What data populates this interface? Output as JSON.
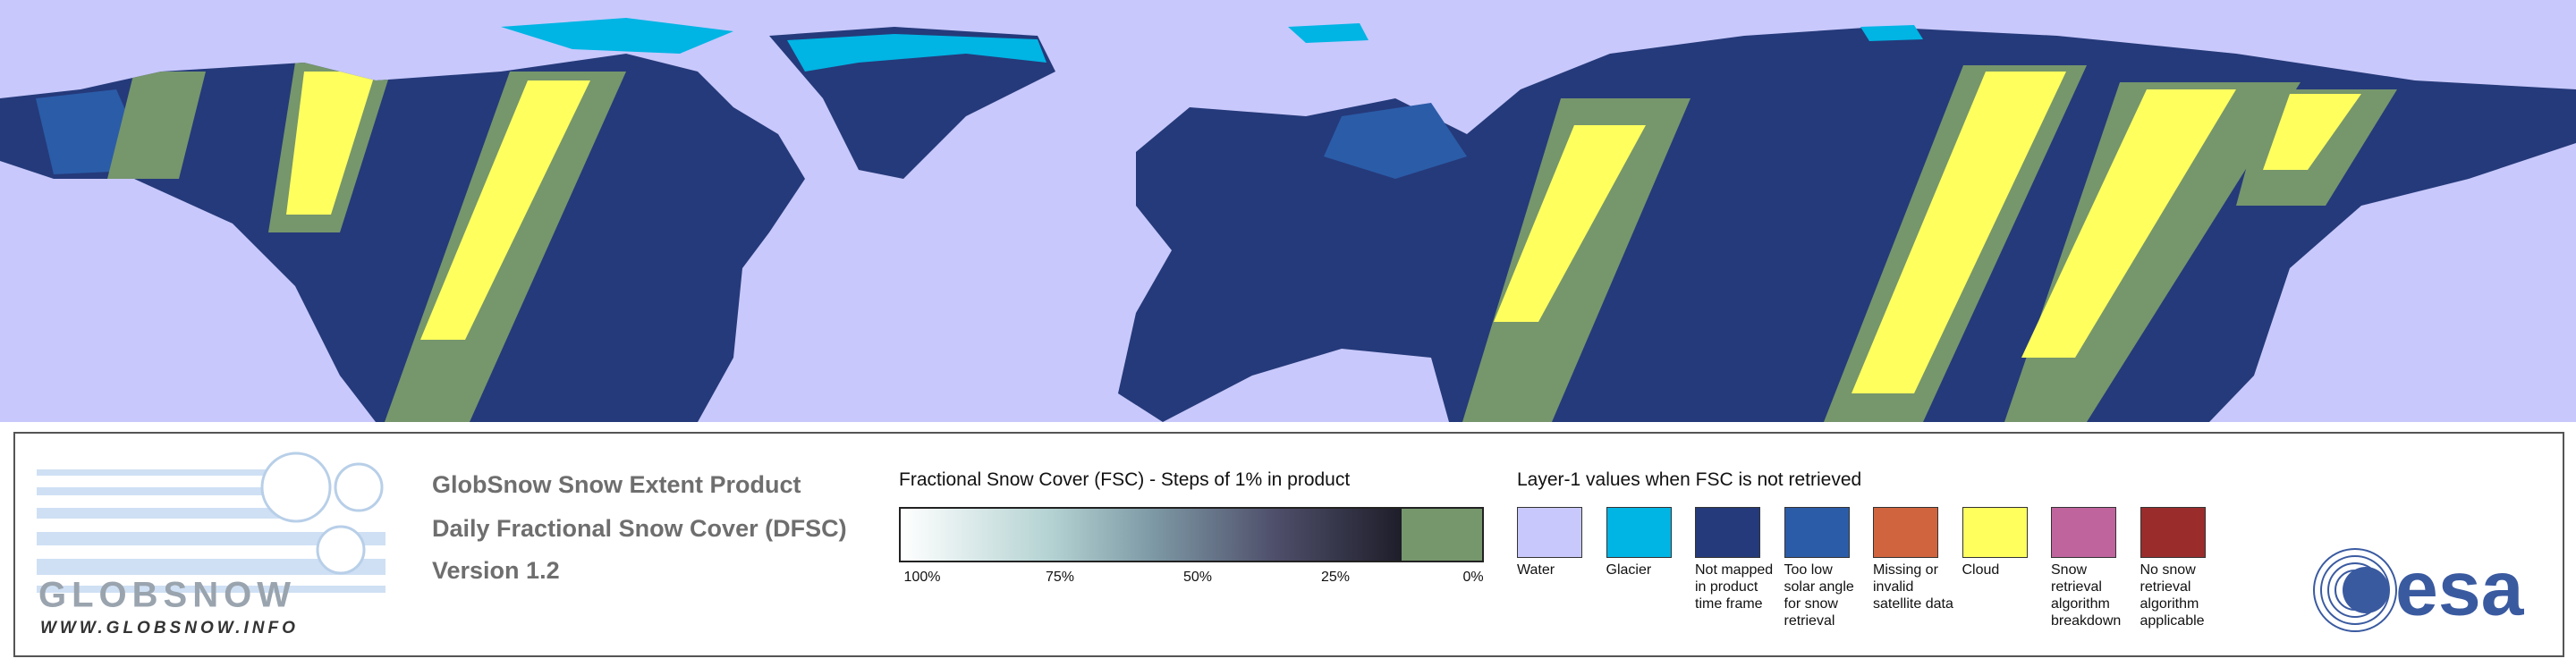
{
  "logo": {
    "name": "GLOBSNOW",
    "url": "WWW.GLOBSNOW.INFO"
  },
  "product": {
    "lines": [
      "GlobSnow Snow Extent Product",
      "Daily Fractional Snow Cover (DFSC)",
      "Version 1.2"
    ]
  },
  "fsc_scale": {
    "title": "Fractional Snow Cover (FSC) - Steps of 1% in product",
    "ticks": [
      {
        "value": 100,
        "label": "100%"
      },
      {
        "value": 75,
        "label": "75%"
      },
      {
        "value": 50,
        "label": "50%"
      },
      {
        "value": 25,
        "label": "25%"
      },
      {
        "value": 0,
        "label": "0%"
      }
    ]
  },
  "layer1": {
    "title": "Layer-1 values when FSC is not retrieved",
    "items": [
      {
        "label": "Water",
        "color": "#c8c8fc"
      },
      {
        "label": "Glacier",
        "color": "#00b4e4"
      },
      {
        "label": "Not mapped in product time frame",
        "color": "#253a7a"
      },
      {
        "label": "Too low solar angle for snow retrieval",
        "color": "#2b5ca8"
      },
      {
        "label": "Missing or invalid satellite data",
        "color": "#d0643e"
      },
      {
        "label": "Cloud",
        "color": "#ffff5e"
      },
      {
        "label": "Snow retrieval algorithm breakdown",
        "color": "#c0649e"
      },
      {
        "label": "No snow retrieval algorithm applicable",
        "color": "#9a2c2c"
      }
    ]
  },
  "esa_logo": "esa"
}
